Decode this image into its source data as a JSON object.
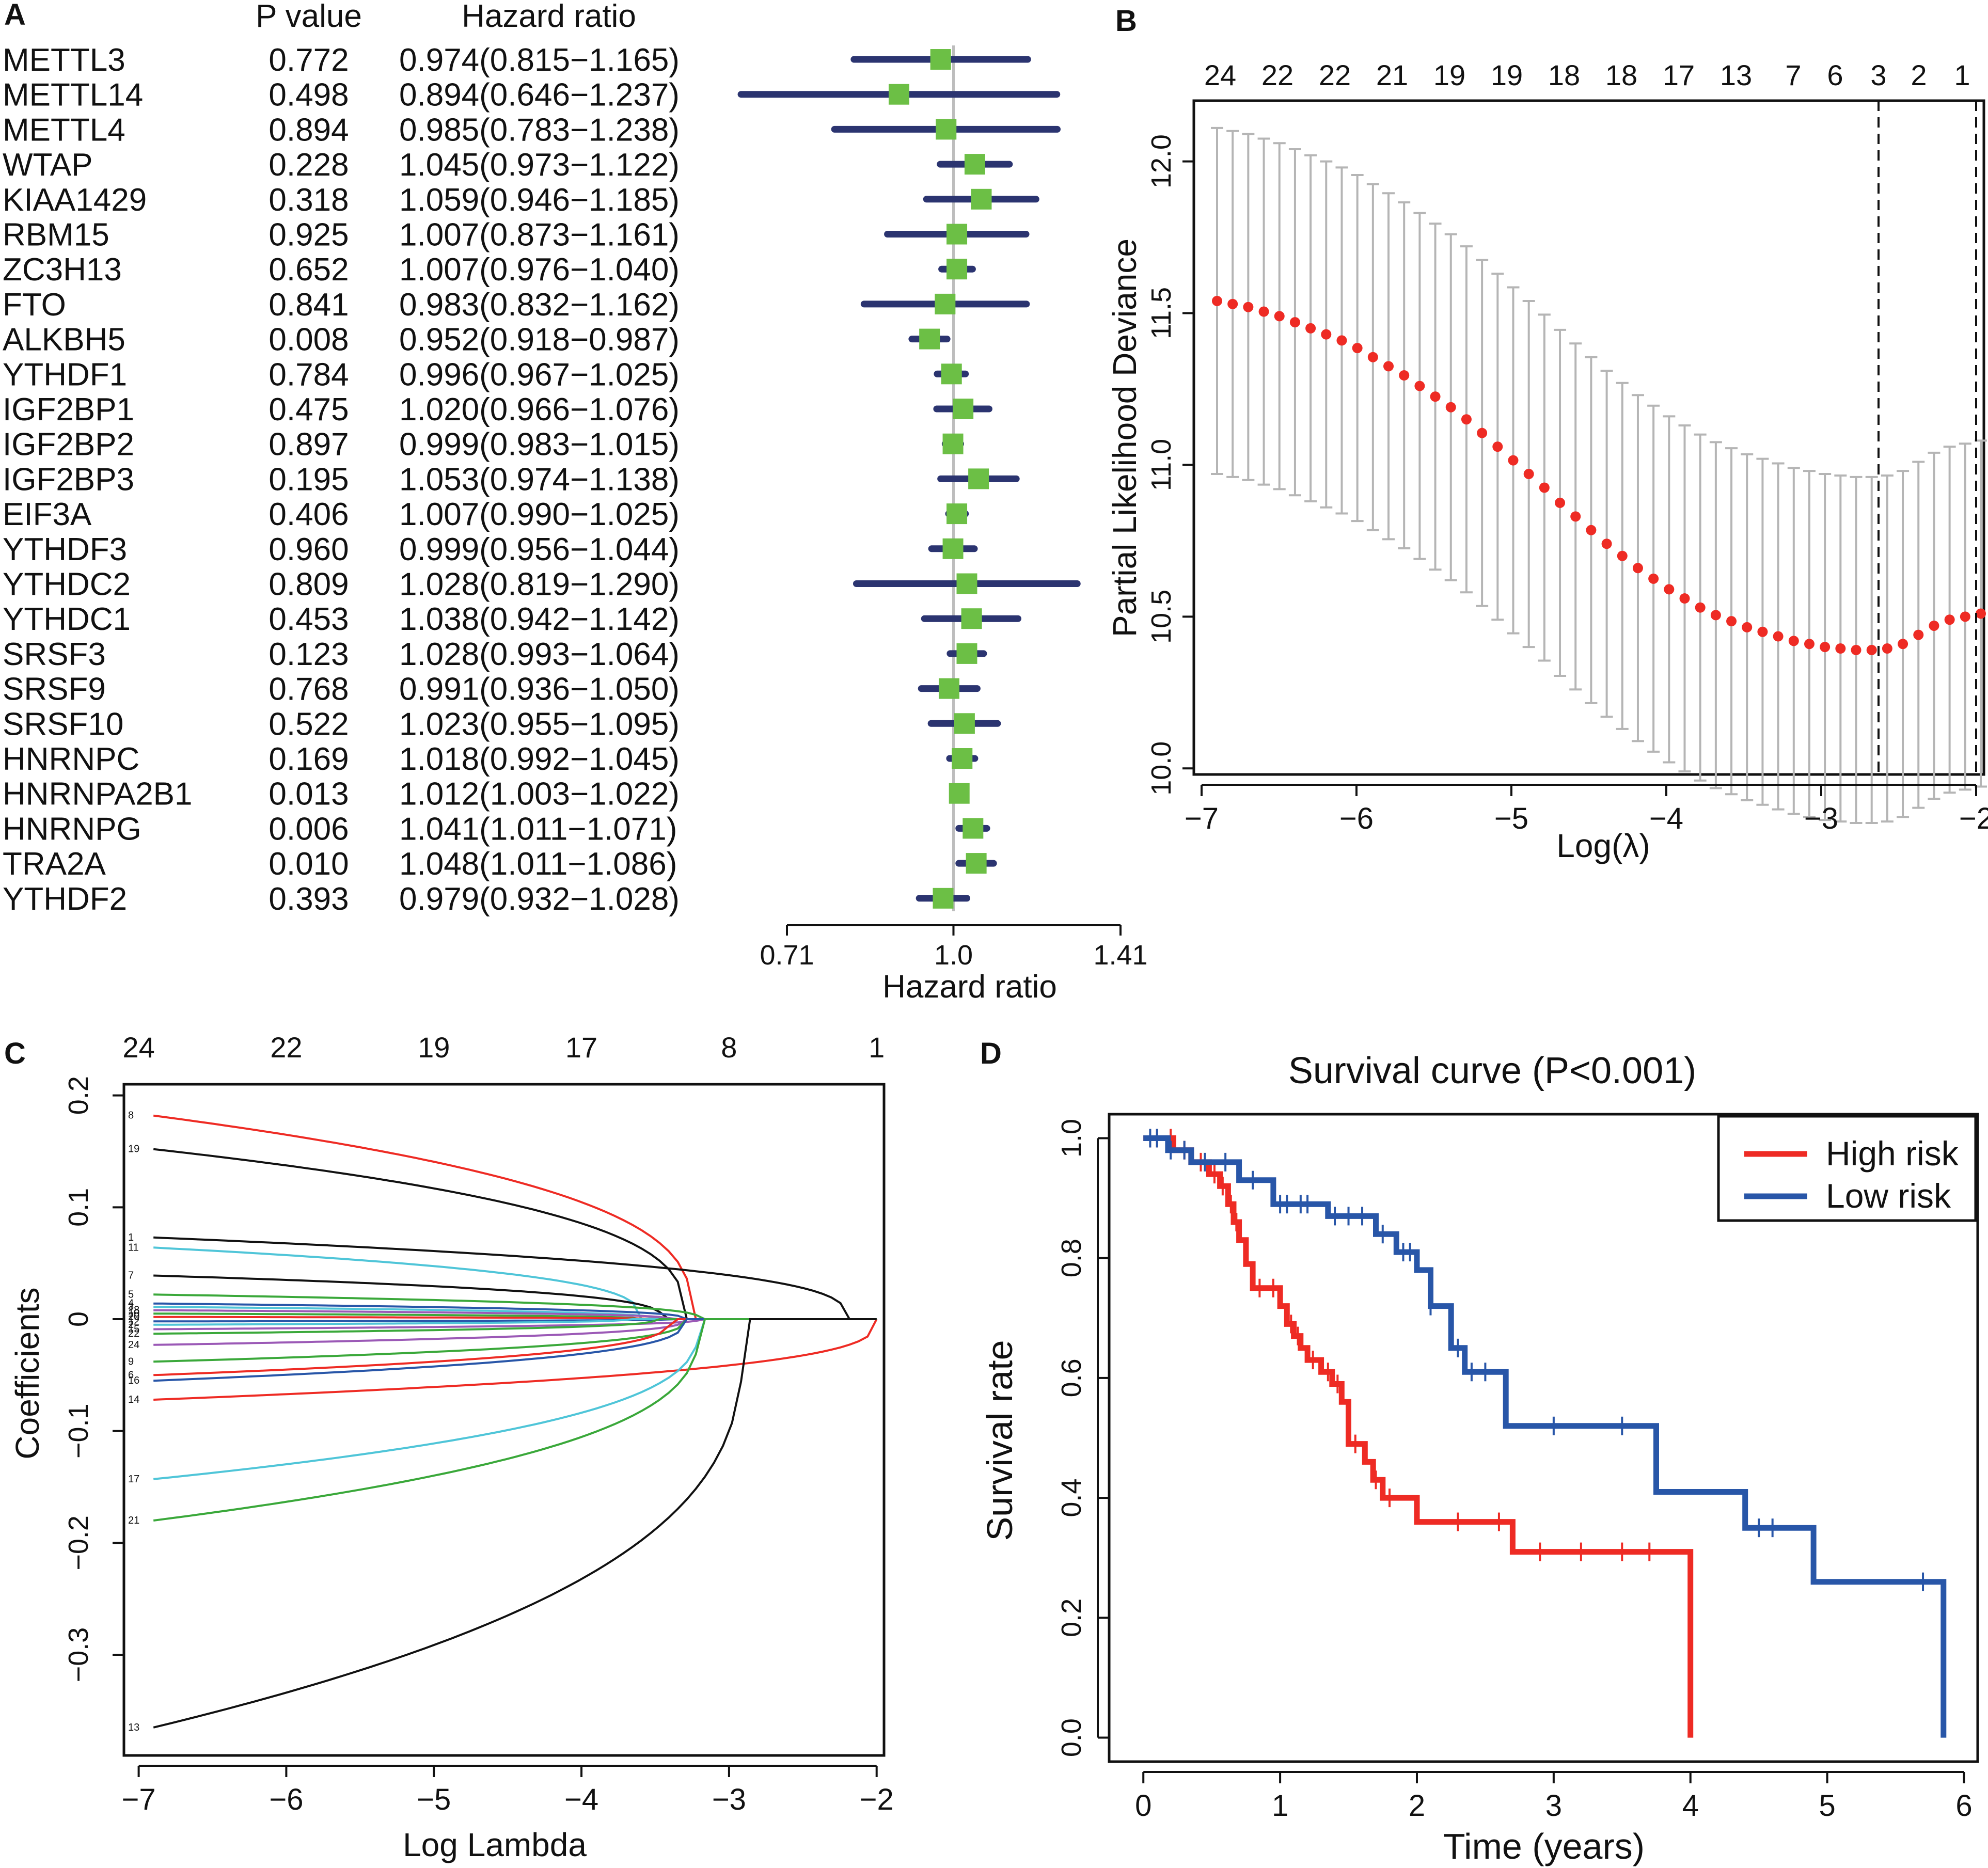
{
  "colors": {
    "red": "#ee2b24",
    "blue": "#2856a8",
    "navy": "#2b3470",
    "green": "#6cbf45",
    "gray": "#b5b5b5",
    "black": "#111111"
  },
  "panels": {
    "A": {
      "letter": "A",
      "col_pvalue": "P value",
      "col_hr": "Hazard ratio"
    },
    "B": {
      "letter": "B"
    },
    "C": {
      "letter": "C"
    },
    "D": {
      "letter": "D"
    }
  },
  "chart_data": [
    {
      "panel": "A",
      "type": "forest",
      "xlabel": "Hazard ratio",
      "xticks": [
        "0.71",
        "1.0",
        "1.41"
      ],
      "highlight_color": "#ee2b24",
      "rows": [
        {
          "gene": "METTL3",
          "p": "0.772",
          "hr_text": "0.974(0.815−1.165)",
          "hr": 0.974,
          "lo": 0.815,
          "hi": 1.165,
          "sig": false
        },
        {
          "gene": "METTL14",
          "p": "0.498",
          "hr_text": "0.894(0.646−1.237)",
          "hr": 0.894,
          "lo": 0.646,
          "hi": 1.237,
          "sig": false
        },
        {
          "gene": "METTL4",
          "p": "0.894",
          "hr_text": "0.985(0.783−1.238)",
          "hr": 0.985,
          "lo": 0.783,
          "hi": 1.238,
          "sig": false
        },
        {
          "gene": "WTAP",
          "p": "0.228",
          "hr_text": "1.045(0.973−1.122)",
          "hr": 1.045,
          "lo": 0.973,
          "hi": 1.122,
          "sig": false
        },
        {
          "gene": "KIAA1429",
          "p": "0.318",
          "hr_text": "1.059(0.946−1.185)",
          "hr": 1.059,
          "lo": 0.946,
          "hi": 1.185,
          "sig": false
        },
        {
          "gene": "RBM15",
          "p": "0.925",
          "hr_text": "1.007(0.873−1.161)",
          "hr": 1.007,
          "lo": 0.873,
          "hi": 1.161,
          "sig": false
        },
        {
          "gene": "ZC3H13",
          "p": "0.652",
          "hr_text": "1.007(0.976−1.040)",
          "hr": 1.007,
          "lo": 0.976,
          "hi": 1.04,
          "sig": false
        },
        {
          "gene": "FTO",
          "p": "0.841",
          "hr_text": "0.983(0.832−1.162)",
          "hr": 0.983,
          "lo": 0.832,
          "hi": 1.162,
          "sig": false
        },
        {
          "gene": "ALKBH5",
          "p": "0.008",
          "hr_text": "0.952(0.918−0.987)",
          "hr": 0.952,
          "lo": 0.918,
          "hi": 0.987,
          "sig": true
        },
        {
          "gene": "YTHDF1",
          "p": "0.784",
          "hr_text": "0.996(0.967−1.025)",
          "hr": 0.996,
          "lo": 0.967,
          "hi": 1.025,
          "sig": false
        },
        {
          "gene": "IGF2BP1",
          "p": "0.475",
          "hr_text": "1.020(0.966−1.076)",
          "hr": 1.02,
          "lo": 0.966,
          "hi": 1.076,
          "sig": false
        },
        {
          "gene": "IGF2BP2",
          "p": "0.897",
          "hr_text": "0.999(0.983−1.015)",
          "hr": 0.999,
          "lo": 0.983,
          "hi": 1.015,
          "sig": false
        },
        {
          "gene": "IGF2BP3",
          "p": "0.195",
          "hr_text": "1.053(0.974−1.138)",
          "hr": 1.053,
          "lo": 0.974,
          "hi": 1.138,
          "sig": false
        },
        {
          "gene": "EIF3A",
          "p": "0.406",
          "hr_text": "1.007(0.990−1.025)",
          "hr": 1.007,
          "lo": 0.99,
          "hi": 1.025,
          "sig": false
        },
        {
          "gene": "YTHDF3",
          "p": "0.960",
          "hr_text": "0.999(0.956−1.044)",
          "hr": 0.999,
          "lo": 0.956,
          "hi": 1.044,
          "sig": false
        },
        {
          "gene": "YTHDC2",
          "p": "0.809",
          "hr_text": "1.028(0.819−1.290)",
          "hr": 1.028,
          "lo": 0.819,
          "hi": 1.29,
          "sig": false
        },
        {
          "gene": "YTHDC1",
          "p": "0.453",
          "hr_text": "1.038(0.942−1.142)",
          "hr": 1.038,
          "lo": 0.942,
          "hi": 1.142,
          "sig": false
        },
        {
          "gene": "SRSF3",
          "p": "0.123",
          "hr_text": "1.028(0.993−1.064)",
          "hr": 1.028,
          "lo": 0.993,
          "hi": 1.064,
          "sig": false
        },
        {
          "gene": "SRSF9",
          "p": "0.768",
          "hr_text": "0.991(0.936−1.050)",
          "hr": 0.991,
          "lo": 0.936,
          "hi": 1.05,
          "sig": false
        },
        {
          "gene": "SRSF10",
          "p": "0.522",
          "hr_text": "1.023(0.955−1.095)",
          "hr": 1.023,
          "lo": 0.955,
          "hi": 1.095,
          "sig": false
        },
        {
          "gene": "HNRNPC",
          "p": "0.169",
          "hr_text": "1.018(0.992−1.045)",
          "hr": 1.018,
          "lo": 0.992,
          "hi": 1.045,
          "sig": false
        },
        {
          "gene": "HNRNPA2B1",
          "p": "0.013",
          "hr_text": "1.012(1.003−1.022)",
          "hr": 1.012,
          "lo": 1.003,
          "hi": 1.022,
          "sig": true
        },
        {
          "gene": "HNRNPG",
          "p": "0.006",
          "hr_text": "1.041(1.011−1.071)",
          "hr": 1.041,
          "lo": 1.011,
          "hi": 1.071,
          "sig": true
        },
        {
          "gene": "TRA2A",
          "p": "0.010",
          "hr_text": "1.048(1.011−1.086)",
          "hr": 1.048,
          "lo": 1.011,
          "hi": 1.086,
          "sig": true
        },
        {
          "gene": "YTHDF2",
          "p": "0.393",
          "hr_text": "0.979(0.932−1.028)",
          "hr": 0.979,
          "lo": 0.932,
          "hi": 1.028,
          "sig": false
        }
      ]
    },
    {
      "panel": "B",
      "type": "line",
      "xlabel": "Log(λ)",
      "ylabel": "Partial Likelihood Deviance",
      "xlim": [
        -7.05,
        -1.95
      ],
      "ylim": [
        9.98,
        12.2
      ],
      "xticks": [
        "−7",
        "−6",
        "−5",
        "−4",
        "−3",
        "−2"
      ],
      "yticks": [
        "10.0",
        "10.5",
        "11.0",
        "11.5",
        "12.0"
      ],
      "top_labels": [
        "24",
        "22",
        "22",
        "21",
        "19",
        "19",
        "18",
        "18",
        "17",
        "13",
        "7",
        "6",
        "3",
        "2",
        "1"
      ],
      "top_label_x": [
        -6.88,
        -6.51,
        -6.14,
        -5.77,
        -5.4,
        -5.03,
        -4.66,
        -4.29,
        -3.92,
        -3.55,
        -3.18,
        -2.91,
        -2.63,
        -2.37,
        -2.09
      ],
      "vlines": [
        -2.63,
        -2.0
      ],
      "n_points": 50,
      "x_start": -6.9,
      "x_end": -1.97,
      "mean": [
        11.54,
        11.53,
        11.52,
        11.505,
        11.49,
        11.47,
        11.45,
        11.43,
        11.41,
        11.385,
        11.355,
        11.325,
        11.295,
        11.26,
        11.225,
        11.19,
        11.15,
        11.105,
        11.06,
        11.015,
        10.97,
        10.925,
        10.875,
        10.83,
        10.785,
        10.74,
        10.7,
        10.66,
        10.625,
        10.59,
        10.56,
        10.53,
        10.505,
        10.485,
        10.465,
        10.45,
        10.435,
        10.42,
        10.41,
        10.4,
        10.395,
        10.39,
        10.39,
        10.395,
        10.41,
        10.44,
        10.47,
        10.49,
        10.5,
        10.51
      ],
      "upper_offset": 0.57,
      "lower_offset": 0.57
    },
    {
      "panel": "C",
      "type": "line",
      "xlabel": "Log Lambda",
      "ylabel": "Coefficients",
      "xlim": [
        -7.1,
        -1.95
      ],
      "ylim": [
        -0.39,
        0.21
      ],
      "xticks": [
        "−7",
        "−6",
        "−5",
        "−4",
        "−3",
        "−2"
      ],
      "yticks": [
        "−0.3",
        "−0.2",
        "−0.1",
        "0",
        "0.1",
        "0.2"
      ],
      "top_labels": [
        "24",
        "22",
        "19",
        "17",
        "8",
        "1"
      ],
      "top_label_x": [
        -7,
        -6,
        -5,
        -4,
        -3,
        -2
      ],
      "series": [
        {
          "label": "8",
          "color": "#ee2b24",
          "start": 0.182,
          "zero_at": -3.25
        },
        {
          "label": "19",
          "color": "#111111",
          "start": 0.152,
          "zero_at": -3.3
        },
        {
          "label": "1",
          "color": "#111111",
          "start": 0.073,
          "zero_at": -2.2
        },
        {
          "label": "11",
          "color": "#4fc5d8",
          "start": 0.064,
          "zero_at": -3.6
        },
        {
          "label": "7",
          "color": "#111111",
          "start": 0.039,
          "zero_at": -3.45
        },
        {
          "label": "5",
          "color": "#3aa83a",
          "start": 0.022,
          "zero_at": -3.2
        },
        {
          "label": "4",
          "color": "#2856a8",
          "start": 0.014,
          "zero_at": -3.3
        },
        {
          "label": "3",
          "color": "#4fc5d8",
          "start": 0.011,
          "zero_at": -3.5
        },
        {
          "label": "18",
          "color": "#9b59b6",
          "start": 0.008,
          "zero_at": -3.4
        },
        {
          "label": "10",
          "color": "#3aa83a",
          "start": 0.005,
          "zero_at": -3.6
        },
        {
          "label": "20",
          "color": "#ee2b24",
          "start": 0.002,
          "zero_at": -3.5
        },
        {
          "label": "12",
          "color": "#2856a8",
          "start": -0.002,
          "zero_at": -3.4
        },
        {
          "label": "2",
          "color": "#4fc5d8",
          "start": -0.005,
          "zero_at": -3.7
        },
        {
          "label": "15",
          "color": "#9b59b6",
          "start": -0.009,
          "zero_at": -3.2
        },
        {
          "label": "22",
          "color": "#3aa83a",
          "start": -0.013,
          "zero_at": -3.5
        },
        {
          "label": "24",
          "color": "#9b59b6",
          "start": -0.023,
          "zero_at": -3.3
        },
        {
          "label": "9",
          "color": "#3aa83a",
          "start": -0.038,
          "zero_at": -3.3
        },
        {
          "label": "6",
          "color": "#ee2b24",
          "start": -0.05,
          "zero_at": -3.4
        },
        {
          "label": "16",
          "color": "#2856a8",
          "start": -0.055,
          "zero_at": -3.3
        },
        {
          "label": "14",
          "color": "#ee2b24",
          "start": -0.072,
          "zero_at": -2.0
        },
        {
          "label": "17",
          "color": "#4fc5d8",
          "start": -0.143,
          "zero_at": -3.2
        },
        {
          "label": "21",
          "color": "#3aa83a",
          "start": -0.18,
          "zero_at": -3.2
        },
        {
          "label": "13",
          "color": "#111111",
          "start": -0.365,
          "zero_at": -2.9
        }
      ]
    },
    {
      "panel": "D",
      "type": "line",
      "title": "Survival curve (P<0.001)",
      "xlabel": "Time (years)",
      "ylabel": "Survival rate",
      "xlim": [
        -0.25,
        6.1
      ],
      "ylim": [
        -0.04,
        1.04
      ],
      "xticks": [
        "0",
        "1",
        "2",
        "3",
        "4",
        "5",
        "6"
      ],
      "yticks": [
        "0.0",
        "0.2",
        "0.4",
        "0.6",
        "0.8",
        "1.0"
      ],
      "legend": {
        "position": "top-right",
        "entries": [
          "High risk",
          "Low risk"
        ]
      },
      "series": [
        {
          "name": "High risk",
          "color": "#ee2b24",
          "x": [
            0,
            0.22,
            0.35,
            0.48,
            0.56,
            0.62,
            0.66,
            0.7,
            0.75,
            0.8,
            1.0,
            1.05,
            1.1,
            1.15,
            1.2,
            1.3,
            1.38,
            1.45,
            1.5,
            1.62,
            1.68,
            1.75,
            2.0,
            2.7,
            3.3,
            4.0
          ],
          "y": [
            1.0,
            0.98,
            0.96,
            0.94,
            0.92,
            0.89,
            0.86,
            0.83,
            0.79,
            0.75,
            0.72,
            0.69,
            0.67,
            0.65,
            0.63,
            0.61,
            0.59,
            0.56,
            0.49,
            0.46,
            0.43,
            0.4,
            0.36,
            0.31,
            0.31,
            0.0
          ],
          "censor_x": [
            0.05,
            0.1,
            0.2,
            0.3,
            0.42,
            0.52,
            0.58,
            0.64,
            0.68,
            0.85,
            0.95,
            1.08,
            1.13,
            1.24,
            1.35,
            1.42,
            1.55,
            1.7,
            1.8,
            2.3,
            2.6,
            2.9,
            3.2,
            3.5,
            3.7
          ]
        },
        {
          "name": "Low risk",
          "color": "#2856a8",
          "x": [
            0,
            0.18,
            0.35,
            0.7,
            0.95,
            1.35,
            1.7,
            1.85,
            2.0,
            2.1,
            2.25,
            2.35,
            2.65,
            3.75,
            4.4,
            4.9,
            5.85
          ],
          "y": [
            1.0,
            0.98,
            0.96,
            0.93,
            0.89,
            0.87,
            0.84,
            0.81,
            0.78,
            0.72,
            0.65,
            0.61,
            0.52,
            0.41,
            0.35,
            0.26,
            0.0
          ],
          "censor_x": [
            0.05,
            0.1,
            0.2,
            0.3,
            0.45,
            0.6,
            0.8,
            1.0,
            1.05,
            1.15,
            1.2,
            1.4,
            1.5,
            1.6,
            1.75,
            1.9,
            1.95,
            2.1,
            2.3,
            2.4,
            2.5,
            3.0,
            3.5,
            4.5,
            4.6,
            5.7
          ]
        }
      ]
    }
  ]
}
